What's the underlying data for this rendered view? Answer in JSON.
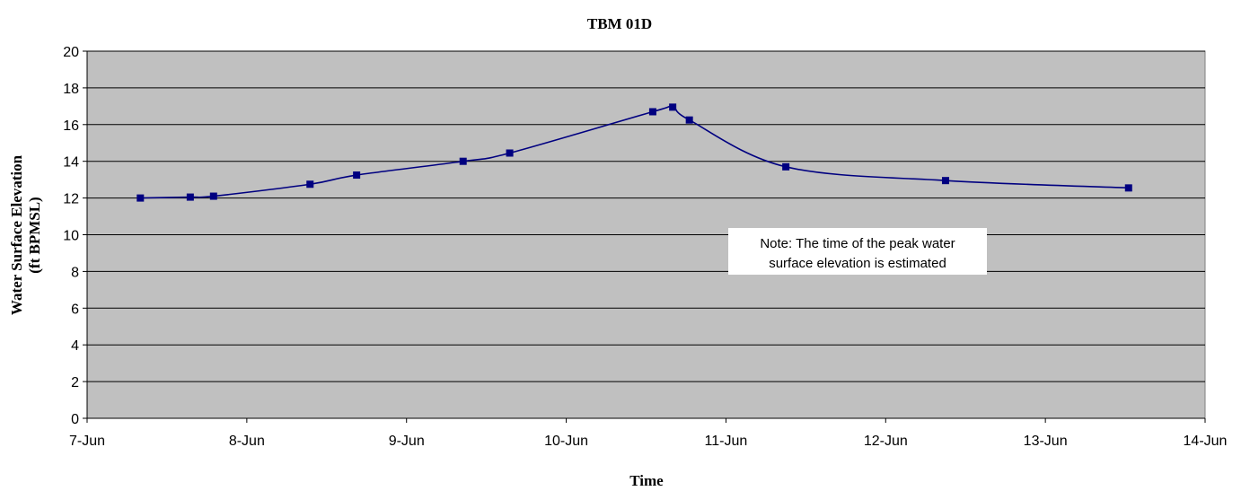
{
  "chart_data": {
    "type": "line",
    "title": "TBM 01D",
    "xlabel": "Time",
    "ylabel_line1": "Water Surface Elevation",
    "ylabel_line2": "(ft BPMSL)",
    "x_tick_labels": [
      "7-Jun",
      "8-Jun",
      "9-Jun",
      "10-Jun",
      "11-Jun",
      "12-Jun",
      "13-Jun",
      "14-Jun"
    ],
    "xlim": [
      "7-Jun 00:00",
      "14-Jun 00:00"
    ],
    "ylim": [
      0,
      20
    ],
    "y_ticks": [
      0,
      2,
      4,
      6,
      8,
      10,
      12,
      14,
      16,
      18,
      20
    ],
    "grid": "horizontal",
    "legend": "none",
    "plot_background": "#c0c0c0",
    "series": [
      {
        "color": "#000080",
        "marker": "square",
        "points": [
          {
            "x": "7-Jun 08:00",
            "y": 12.0
          },
          {
            "x": "7-Jun 15:30",
            "y": 12.05
          },
          {
            "x": "7-Jun 19:00",
            "y": 12.1
          },
          {
            "x": "8-Jun 09:30",
            "y": 12.75
          },
          {
            "x": "8-Jun 16:30",
            "y": 13.25
          },
          {
            "x": "9-Jun 08:30",
            "y": 14.0
          },
          {
            "x": "9-Jun 15:30",
            "y": 14.45
          },
          {
            "x": "10-Jun 13:00",
            "y": 16.7
          },
          {
            "x": "10-Jun 16:00",
            "y": 16.95
          },
          {
            "x": "10-Jun 18:30",
            "y": 16.25
          },
          {
            "x": "11-Jun 09:00",
            "y": 13.7
          },
          {
            "x": "12-Jun 09:00",
            "y": 12.95
          },
          {
            "x": "13-Jun 12:30",
            "y": 12.55
          }
        ]
      }
    ],
    "annotations": [
      {
        "line1": "Note: The time of the peak water",
        "line2": "surface elevation is estimated"
      }
    ]
  }
}
